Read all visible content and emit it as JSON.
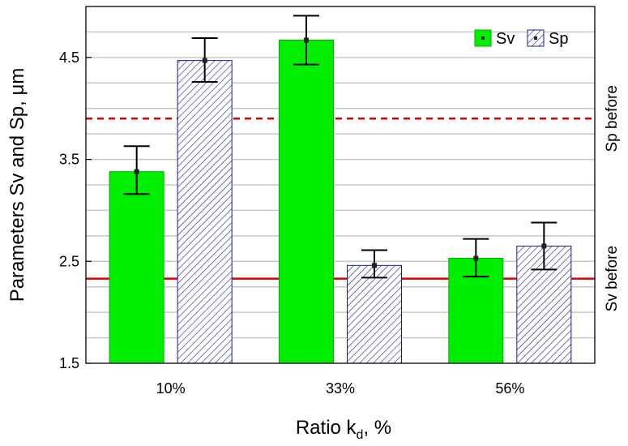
{
  "chart_data": {
    "type": "bar",
    "categories": [
      "10%",
      "33%",
      "56%"
    ],
    "series": [
      {
        "name": "Sv",
        "values": [
          3.38,
          4.67,
          2.53
        ],
        "error_low": [
          3.16,
          4.43,
          2.35
        ],
        "error_high": [
          3.63,
          4.91,
          2.72
        ],
        "color": "#00ee00",
        "pattern": "solid"
      },
      {
        "name": "Sp",
        "values": [
          4.47,
          2.46,
          2.65
        ],
        "error_low": [
          4.26,
          2.34,
          2.42
        ],
        "error_high": [
          4.69,
          2.61,
          2.88
        ],
        "color": "#1a1a8c",
        "pattern": "hatched"
      }
    ],
    "ylabel": "Parameters Sv and Sp, μm",
    "xlabel_main": "Ratio k",
    "xlabel_sub": "d",
    "xlabel_tail": ", %",
    "ylim": [
      1.5,
      5.0
    ],
    "yticks": [
      "1.5",
      "2.5",
      "3.5",
      "4.5"
    ],
    "ytick_values": [
      1.5,
      2.5,
      3.5,
      4.5
    ],
    "grid": true,
    "legend_position": "top-right",
    "reference_lines": [
      {
        "label": "Sp before",
        "value": 3.9,
        "style": "dashed",
        "color": "#e00000"
      },
      {
        "label": "Sv before",
        "value": 2.33,
        "style": "solid",
        "color": "#e00000"
      }
    ]
  }
}
